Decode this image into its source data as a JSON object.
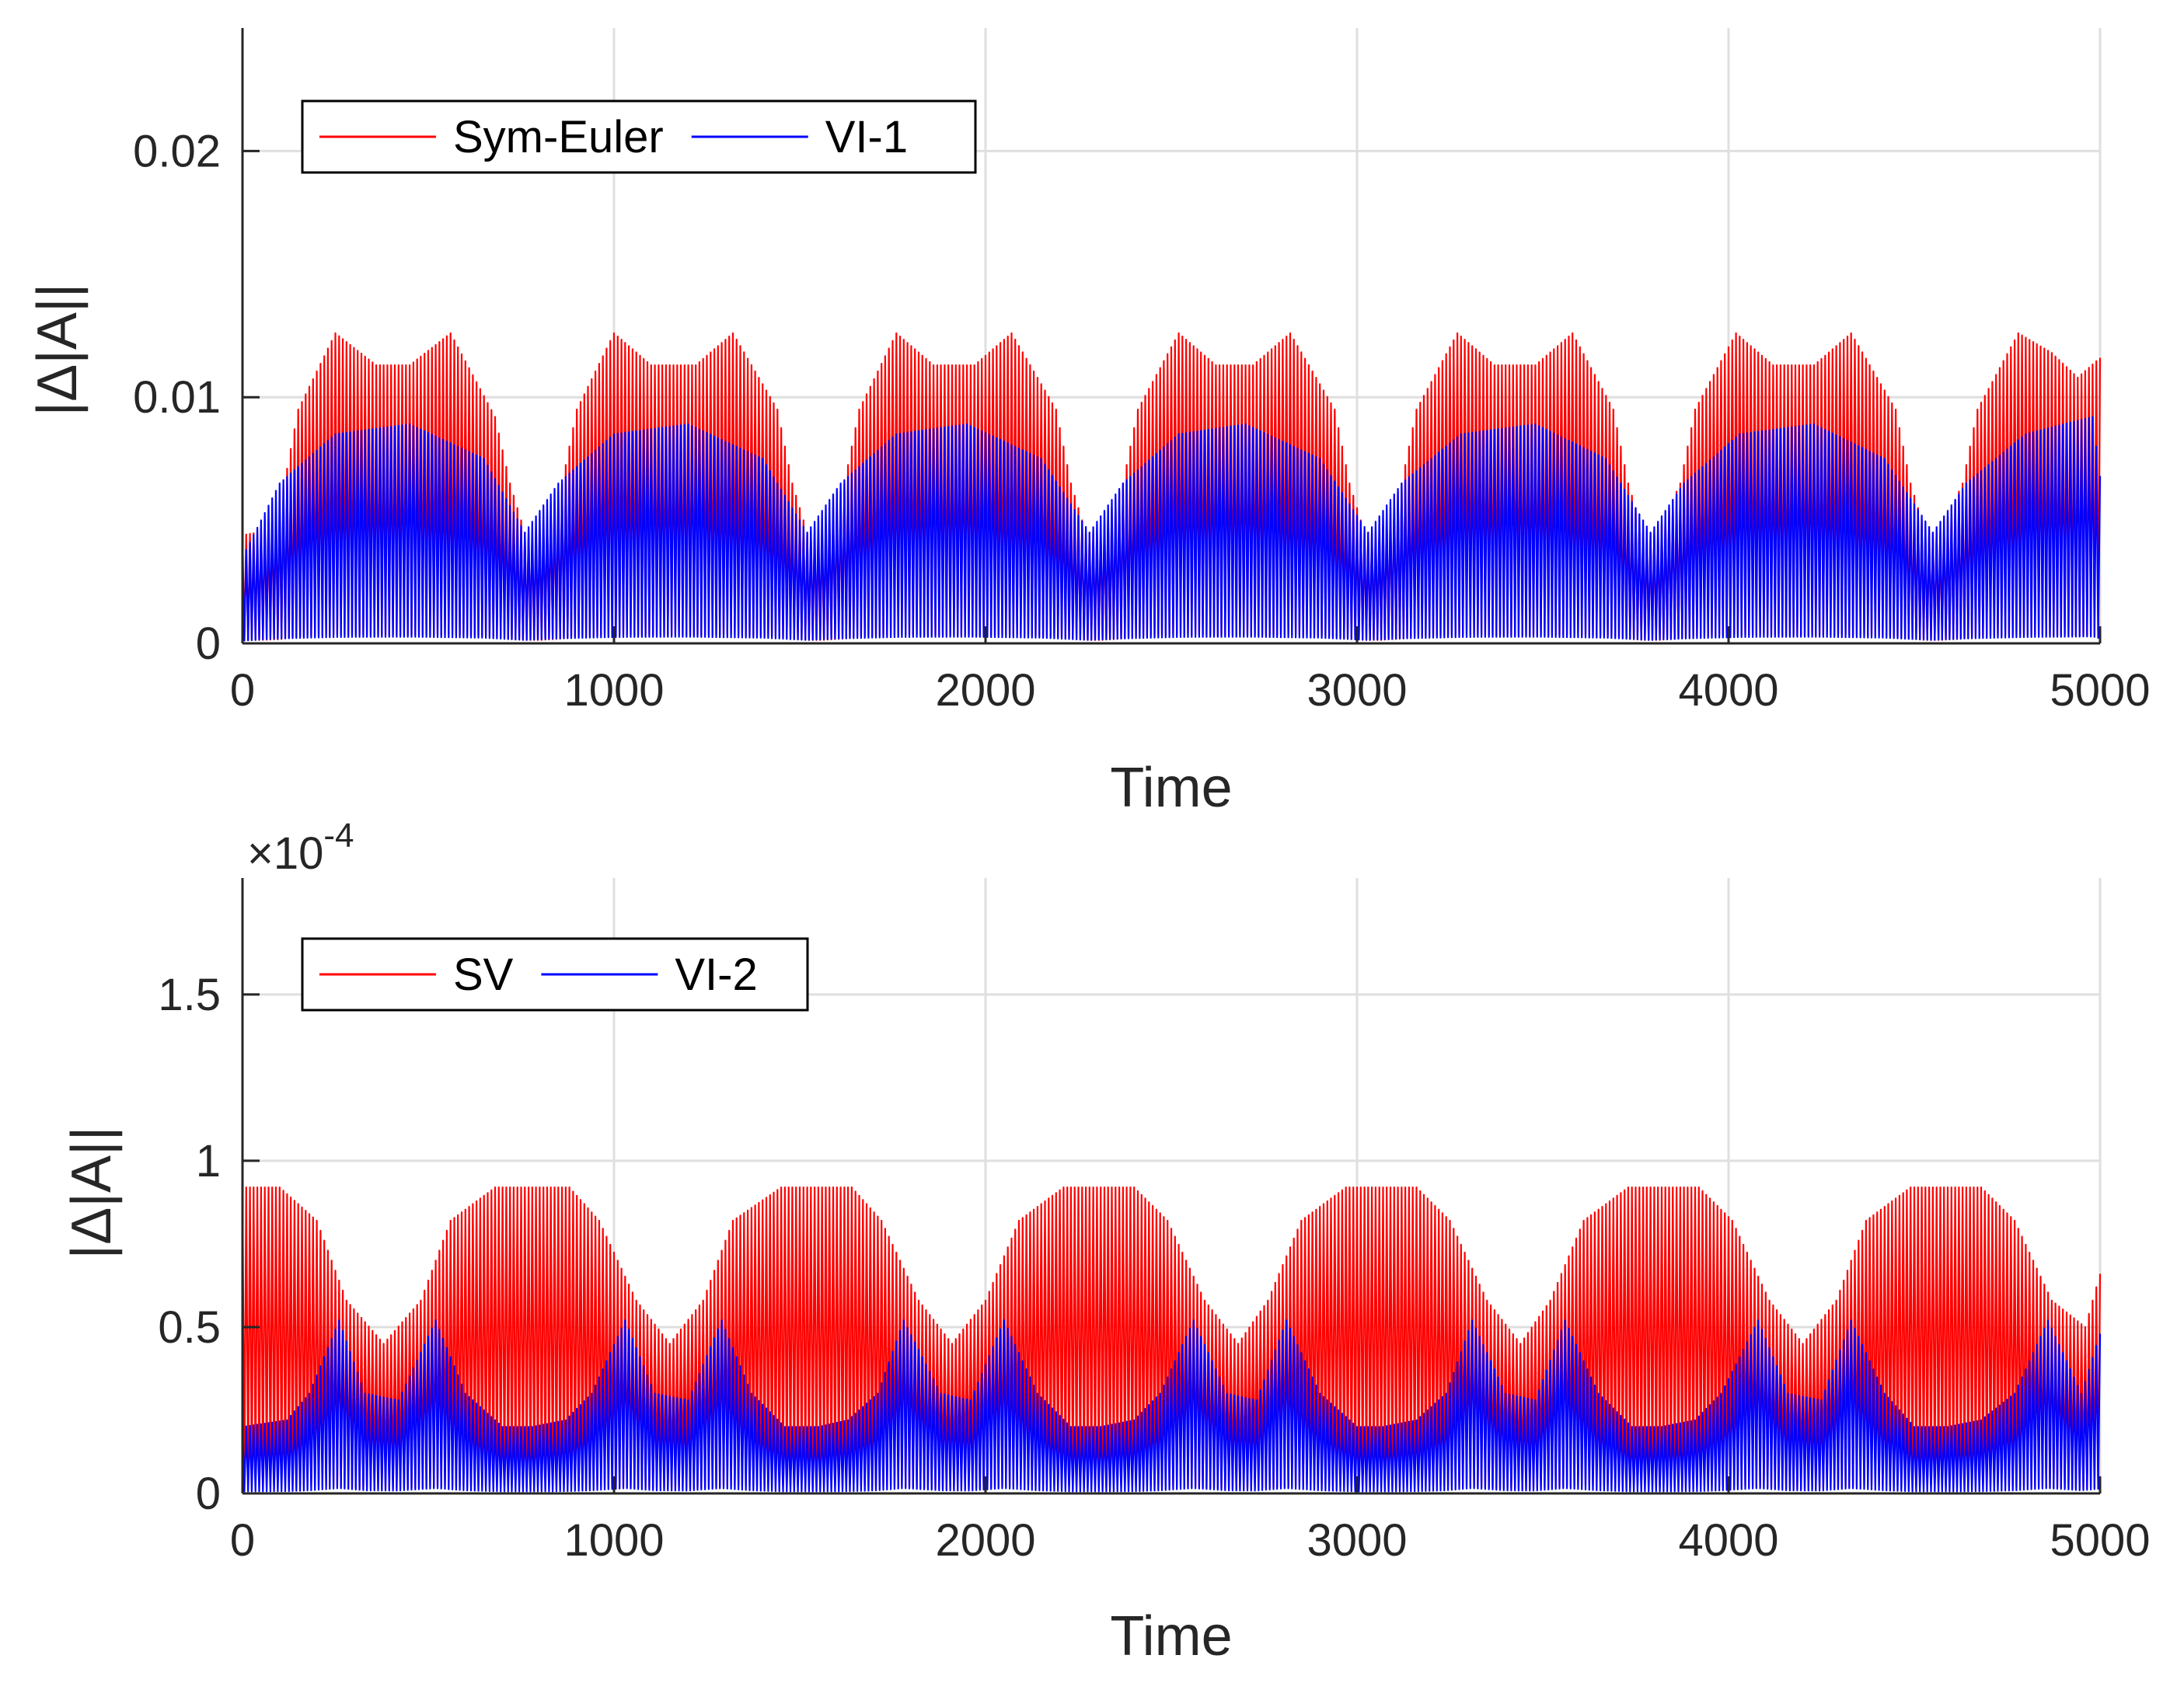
{
  "chart_data": [
    {
      "type": "line",
      "title": "",
      "xlabel": "Time",
      "ylabel": "|Δ|A||",
      "xlim": [
        0,
        5000
      ],
      "ylim": [
        0,
        0.025
      ],
      "xticks": [
        0,
        1000,
        2000,
        3000,
        4000,
        5000
      ],
      "xtick_labels": [
        "0",
        "1000",
        "2000",
        "3000",
        "4000",
        "5000"
      ],
      "yticks": [
        0,
        0.01,
        0.02
      ],
      "ytick_labels": [
        "0",
        "0.01",
        "0.02"
      ],
      "exponent_label": "",
      "grid": true,
      "legend_position": "top-left",
      "oscillation_period": 10,
      "series": [
        {
          "name": "Sym-Euler",
          "color": "#ff0000",
          "envelope_x": [
            0,
            40,
            100,
            150,
            250,
            360,
            450,
            560,
            680,
            720,
            760,
            800,
            860,
            900,
            1000,
            1100,
            1220,
            1320,
            1440,
            1480,
            1520,
            1560,
            1620,
            1660,
            1760,
            1860,
            1970,
            2070,
            2190,
            2230,
            2270,
            2310,
            2370,
            2410,
            2520,
            2620,
            2720,
            2820,
            2940,
            2980,
            3020,
            3060,
            3120,
            3160,
            3270,
            3370,
            3480,
            3580,
            3690,
            3730,
            3770,
            3810,
            3870,
            3910,
            4020,
            4120,
            4230,
            4330,
            4450,
            4490,
            4530,
            4570,
            4630,
            4670,
            4780,
            4870,
            4940,
            5000
          ],
          "upper": [
            0.0044,
            0.0045,
            0.0055,
            0.0095,
            0.0126,
            0.0113,
            0.0113,
            0.0126,
            0.0092,
            0.0065,
            0.0045,
            0.0045,
            0.0065,
            0.0095,
            0.0126,
            0.0113,
            0.0113,
            0.0126,
            0.0095,
            0.0065,
            0.0045,
            0.0045,
            0.0065,
            0.0095,
            0.0126,
            0.0113,
            0.0113,
            0.0126,
            0.0095,
            0.0065,
            0.0045,
            0.0045,
            0.0065,
            0.0095,
            0.0126,
            0.0113,
            0.0113,
            0.0126,
            0.0095,
            0.0065,
            0.0045,
            0.0045,
            0.0065,
            0.0095,
            0.0126,
            0.0113,
            0.0113,
            0.0126,
            0.0095,
            0.0065,
            0.0045,
            0.0045,
            0.0065,
            0.0095,
            0.0126,
            0.0113,
            0.0113,
            0.0126,
            0.0095,
            0.0065,
            0.0045,
            0.0045,
            0.0065,
            0.0095,
            0.0126,
            0.0118,
            0.0108,
            0.0116
          ]
        },
        {
          "name": "VI-1",
          "color": "#0000ff",
          "envelope_x": [
            0,
            100,
            250,
            450,
            650,
            760,
            850,
            1000,
            1200,
            1400,
            1520,
            1610,
            1760,
            1950,
            2150,
            2280,
            2370,
            2520,
            2700,
            2900,
            3030,
            3120,
            3280,
            3480,
            3670,
            3790,
            3880,
            4030,
            4230,
            4420,
            4550,
            4640,
            4800,
            4980,
            5000
          ],
          "upper": [
            0.0035,
            0.0065,
            0.0085,
            0.0089,
            0.0075,
            0.0045,
            0.0065,
            0.0085,
            0.0089,
            0.0075,
            0.0045,
            0.0065,
            0.0085,
            0.0089,
            0.0075,
            0.0045,
            0.0065,
            0.0085,
            0.0089,
            0.0075,
            0.0045,
            0.0065,
            0.0085,
            0.0089,
            0.0075,
            0.0045,
            0.0065,
            0.0085,
            0.0089,
            0.0075,
            0.0045,
            0.0065,
            0.0085,
            0.0092,
            0.0068
          ]
        }
      ]
    },
    {
      "type": "line",
      "title": "",
      "xlabel": "Time",
      "ylabel": "|Δ|A||",
      "xlim": [
        0,
        5000
      ],
      "ylim": [
        0,
        1.85
      ],
      "xticks": [
        0,
        1000,
        2000,
        3000,
        4000,
        5000
      ],
      "xtick_labels": [
        "0",
        "1000",
        "2000",
        "3000",
        "4000",
        "5000"
      ],
      "yticks": [
        0,
        0.5,
        1,
        1.5
      ],
      "ytick_labels": [
        "0",
        "0.5",
        "1",
        "1.5"
      ],
      "exponent_label": "×10",
      "exponent_power": "-4",
      "grid": true,
      "legend_position": "top-left",
      "oscillation_period": 10,
      "series": [
        {
          "name": "SV",
          "color": "#ff0000",
          "envelope_x": [
            0,
            100,
            200,
            280,
            380,
            480,
            560,
            680,
            880,
            960,
            1060,
            1150,
            1240,
            1320,
            1450,
            1640,
            1720,
            1820,
            1910,
            2000,
            2090,
            2210,
            2400,
            2490,
            2590,
            2680,
            2760,
            2850,
            2970,
            3160,
            3250,
            3350,
            3440,
            3520,
            3610,
            3730,
            3920,
            4010,
            4110,
            4200,
            4290,
            4370,
            4490,
            4680,
            4770,
            4870,
            4960,
            5000
          ],
          "upper": [
            0.92,
            0.92,
            0.82,
            0.58,
            0.45,
            0.58,
            0.82,
            0.92,
            0.92,
            0.82,
            0.58,
            0.45,
            0.58,
            0.82,
            0.92,
            0.92,
            0.82,
            0.58,
            0.45,
            0.58,
            0.82,
            0.92,
            0.92,
            0.82,
            0.58,
            0.45,
            0.58,
            0.82,
            0.92,
            0.92,
            0.82,
            0.58,
            0.45,
            0.58,
            0.82,
            0.92,
            0.92,
            0.82,
            0.58,
            0.45,
            0.58,
            0.82,
            0.92,
            0.92,
            0.82,
            0.58,
            0.5,
            0.66
          ]
        },
        {
          "name": "VI-2",
          "color": "#0000ff",
          "envelope_x": [
            0,
            120,
            180,
            260,
            330,
            420,
            520,
            600,
            700,
            780,
            870,
            940,
            1030,
            1110,
            1200,
            1290,
            1370,
            1460,
            1550,
            1630,
            1710,
            1780,
            1880,
            1960,
            2050,
            2140,
            2230,
            2310,
            2400,
            2470,
            2560,
            2650,
            2730,
            2810,
            2900,
            3000,
            3070,
            3160,
            3240,
            3310,
            3400,
            3480,
            3560,
            3650,
            3740,
            3820,
            3910,
            3980,
            4080,
            4160,
            4250,
            4330,
            4420,
            4500,
            4590,
            4680,
            4770,
            4860,
            4950,
            5000
          ],
          "upper": [
            0.2,
            0.22,
            0.3,
            0.52,
            0.3,
            0.28,
            0.52,
            0.3,
            0.2,
            0.2,
            0.22,
            0.3,
            0.52,
            0.3,
            0.28,
            0.52,
            0.3,
            0.2,
            0.2,
            0.22,
            0.3,
            0.52,
            0.3,
            0.28,
            0.52,
            0.3,
            0.2,
            0.2,
            0.22,
            0.3,
            0.52,
            0.3,
            0.28,
            0.52,
            0.3,
            0.2,
            0.2,
            0.22,
            0.3,
            0.52,
            0.3,
            0.28,
            0.52,
            0.3,
            0.2,
            0.2,
            0.22,
            0.3,
            0.52,
            0.3,
            0.28,
            0.52,
            0.3,
            0.2,
            0.2,
            0.22,
            0.3,
            0.52,
            0.3,
            0.48
          ]
        }
      ]
    }
  ]
}
